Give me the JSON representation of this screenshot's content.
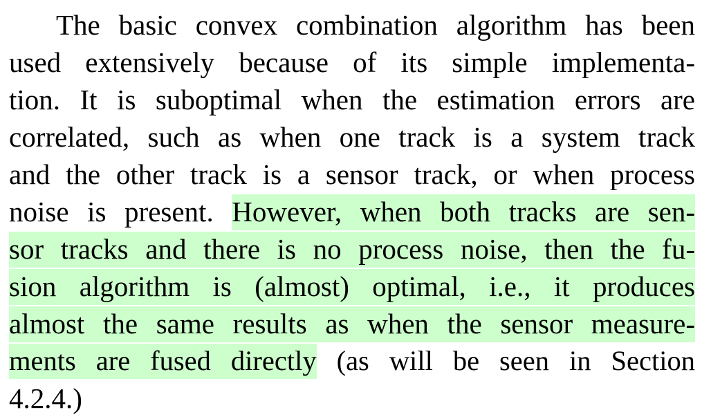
{
  "paragraph": {
    "lines": [
      {
        "plain_before": "The basic convex combination algorithm has been",
        "highlight": "",
        "plain_after": ""
      },
      {
        "plain_before": "used extensively because of its simple implementa-",
        "highlight": "",
        "plain_after": ""
      },
      {
        "plain_before": "tion. It is suboptimal when the estimation errors are",
        "highlight": "",
        "plain_after": ""
      },
      {
        "plain_before": "correlated, such as when one track is a system track",
        "highlight": "",
        "plain_after": ""
      },
      {
        "plain_before": "and the other track is a sensor track, or when process",
        "highlight": "",
        "plain_after": ""
      },
      {
        "plain_before": "noise is present. ",
        "highlight": "However, when both tracks are sen-",
        "plain_after": ""
      },
      {
        "plain_before": "",
        "highlight": "sor tracks and there is no process noise, then the fu-",
        "plain_after": ""
      },
      {
        "plain_before": "",
        "highlight": "sion algorithm is (almost) optimal, i.e., it produces",
        "plain_after": ""
      },
      {
        "plain_before": "",
        "highlight": "almost the same results as when the sensor measure-",
        "plain_after": ""
      },
      {
        "plain_before": "",
        "highlight": "ments are fused directly",
        "plain_after": " (as will be seen in Section"
      },
      {
        "plain_before": "4.2.4.)",
        "highlight": "",
        "plain_after": ""
      }
    ]
  },
  "colors": {
    "text": "#000000",
    "highlight": "#ccffcc",
    "background": "#ffffff"
  }
}
